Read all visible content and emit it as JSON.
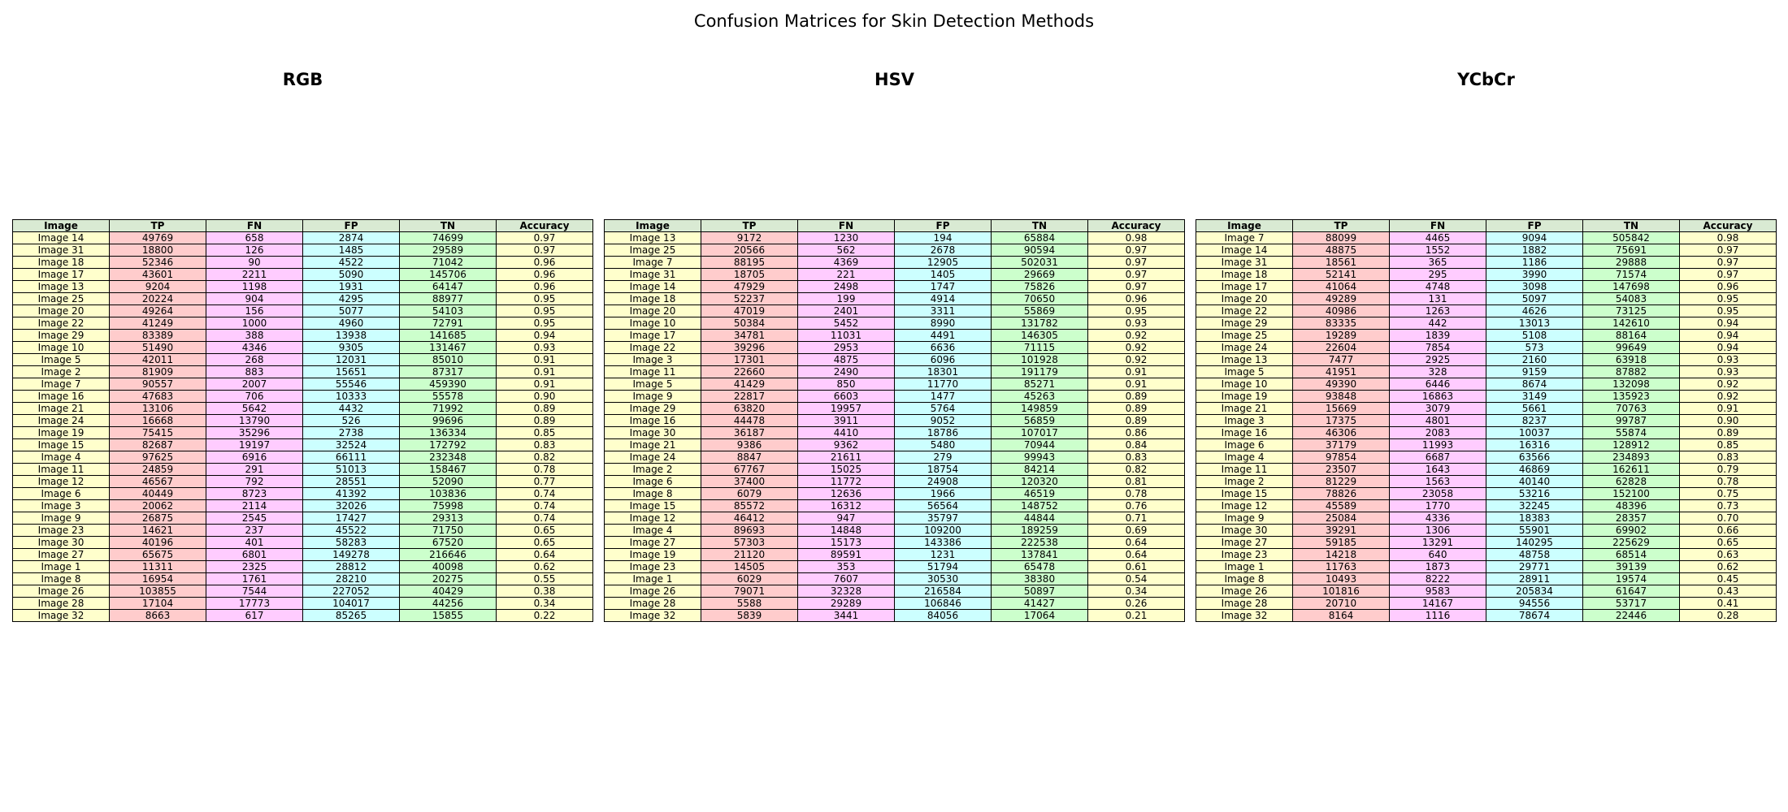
{
  "title": "Confusion Matrices for Skin Detection Methods",
  "colors": {
    "header": "#d9ead3",
    "image": "#ffffcc",
    "tp": "#ffcccc",
    "fn": "#ffccff",
    "fp": "#ccffff",
    "tn": "#ccffcc",
    "accuracy": "#ffffcc"
  },
  "chart_data": [
    {
      "type": "table",
      "title": "RGB",
      "columns": [
        "Image",
        "TP",
        "FN",
        "FP",
        "TN",
        "Accuracy"
      ],
      "rows": [
        [
          "Image 14",
          "49769",
          "658",
          "2874",
          "74699",
          "0.97"
        ],
        [
          "Image 31",
          "18800",
          "126",
          "1485",
          "29589",
          "0.97"
        ],
        [
          "Image 18",
          "52346",
          "90",
          "4522",
          "71042",
          "0.96"
        ],
        [
          "Image 17",
          "43601",
          "2211",
          "5090",
          "145706",
          "0.96"
        ],
        [
          "Image 13",
          "9204",
          "1198",
          "1931",
          "64147",
          "0.96"
        ],
        [
          "Image 25",
          "20224",
          "904",
          "4295",
          "88977",
          "0.95"
        ],
        [
          "Image 20",
          "49264",
          "156",
          "5077",
          "54103",
          "0.95"
        ],
        [
          "Image 22",
          "41249",
          "1000",
          "4960",
          "72791",
          "0.95"
        ],
        [
          "Image 29",
          "83389",
          "388",
          "13938",
          "141685",
          "0.94"
        ],
        [
          "Image 10",
          "51490",
          "4346",
          "9305",
          "131467",
          "0.93"
        ],
        [
          "Image 5",
          "42011",
          "268",
          "12031",
          "85010",
          "0.91"
        ],
        [
          "Image 2",
          "81909",
          "883",
          "15651",
          "87317",
          "0.91"
        ],
        [
          "Image 7",
          "90557",
          "2007",
          "55546",
          "459390",
          "0.91"
        ],
        [
          "Image 16",
          "47683",
          "706",
          "10333",
          "55578",
          "0.90"
        ],
        [
          "Image 21",
          "13106",
          "5642",
          "4432",
          "71992",
          "0.89"
        ],
        [
          "Image 24",
          "16668",
          "13790",
          "526",
          "99696",
          "0.89"
        ],
        [
          "Image 19",
          "75415",
          "35296",
          "2738",
          "136334",
          "0.85"
        ],
        [
          "Image 15",
          "82687",
          "19197",
          "32524",
          "172792",
          "0.83"
        ],
        [
          "Image 4",
          "97625",
          "6916",
          "66111",
          "232348",
          "0.82"
        ],
        [
          "Image 11",
          "24859",
          "291",
          "51013",
          "158467",
          "0.78"
        ],
        [
          "Image 12",
          "46567",
          "792",
          "28551",
          "52090",
          "0.77"
        ],
        [
          "Image 6",
          "40449",
          "8723",
          "41392",
          "103836",
          "0.74"
        ],
        [
          "Image 3",
          "20062",
          "2114",
          "32026",
          "75998",
          "0.74"
        ],
        [
          "Image 9",
          "26875",
          "2545",
          "17427",
          "29313",
          "0.74"
        ],
        [
          "Image 23",
          "14621",
          "237",
          "45522",
          "71750",
          "0.65"
        ],
        [
          "Image 30",
          "40196",
          "401",
          "58283",
          "67520",
          "0.65"
        ],
        [
          "Image 27",
          "65675",
          "6801",
          "149278",
          "216646",
          "0.64"
        ],
        [
          "Image 1",
          "11311",
          "2325",
          "28812",
          "40098",
          "0.62"
        ],
        [
          "Image 8",
          "16954",
          "1761",
          "28210",
          "20275",
          "0.55"
        ],
        [
          "Image 26",
          "103855",
          "7544",
          "227052",
          "40429",
          "0.38"
        ],
        [
          "Image 28",
          "17104",
          "17773",
          "104017",
          "44256",
          "0.34"
        ],
        [
          "Image 32",
          "8663",
          "617",
          "85265",
          "15855",
          "0.22"
        ]
      ]
    },
    {
      "type": "table",
      "title": "HSV",
      "columns": [
        "Image",
        "TP",
        "FN",
        "FP",
        "TN",
        "Accuracy"
      ],
      "rows": [
        [
          "Image 13",
          "9172",
          "1230",
          "194",
          "65884",
          "0.98"
        ],
        [
          "Image 25",
          "20566",
          "562",
          "2678",
          "90594",
          "0.97"
        ],
        [
          "Image 7",
          "88195",
          "4369",
          "12905",
          "502031",
          "0.97"
        ],
        [
          "Image 31",
          "18705",
          "221",
          "1405",
          "29669",
          "0.97"
        ],
        [
          "Image 14",
          "47929",
          "2498",
          "1747",
          "75826",
          "0.97"
        ],
        [
          "Image 18",
          "52237",
          "199",
          "4914",
          "70650",
          "0.96"
        ],
        [
          "Image 20",
          "47019",
          "2401",
          "3311",
          "55869",
          "0.95"
        ],
        [
          "Image 10",
          "50384",
          "5452",
          "8990",
          "131782",
          "0.93"
        ],
        [
          "Image 17",
          "34781",
          "11031",
          "4491",
          "146305",
          "0.92"
        ],
        [
          "Image 22",
          "39296",
          "2953",
          "6636",
          "71115",
          "0.92"
        ],
        [
          "Image 3",
          "17301",
          "4875",
          "6096",
          "101928",
          "0.92"
        ],
        [
          "Image 11",
          "22660",
          "2490",
          "18301",
          "191179",
          "0.91"
        ],
        [
          "Image 5",
          "41429",
          "850",
          "11770",
          "85271",
          "0.91"
        ],
        [
          "Image 9",
          "22817",
          "6603",
          "1477",
          "45263",
          "0.89"
        ],
        [
          "Image 29",
          "63820",
          "19957",
          "5764",
          "149859",
          "0.89"
        ],
        [
          "Image 16",
          "44478",
          "3911",
          "9052",
          "56859",
          "0.89"
        ],
        [
          "Image 30",
          "36187",
          "4410",
          "18786",
          "107017",
          "0.86"
        ],
        [
          "Image 21",
          "9386",
          "9362",
          "5480",
          "70944",
          "0.84"
        ],
        [
          "Image 24",
          "8847",
          "21611",
          "279",
          "99943",
          "0.83"
        ],
        [
          "Image 2",
          "67767",
          "15025",
          "18754",
          "84214",
          "0.82"
        ],
        [
          "Image 6",
          "37400",
          "11772",
          "24908",
          "120320",
          "0.81"
        ],
        [
          "Image 8",
          "6079",
          "12636",
          "1966",
          "46519",
          "0.78"
        ],
        [
          "Image 15",
          "85572",
          "16312",
          "56564",
          "148752",
          "0.76"
        ],
        [
          "Image 12",
          "46412",
          "947",
          "35797",
          "44844",
          "0.71"
        ],
        [
          "Image 4",
          "89693",
          "14848",
          "109200",
          "189259",
          "0.69"
        ],
        [
          "Image 27",
          "57303",
          "15173",
          "143386",
          "222538",
          "0.64"
        ],
        [
          "Image 19",
          "21120",
          "89591",
          "1231",
          "137841",
          "0.64"
        ],
        [
          "Image 23",
          "14505",
          "353",
          "51794",
          "65478",
          "0.61"
        ],
        [
          "Image 1",
          "6029",
          "7607",
          "30530",
          "38380",
          "0.54"
        ],
        [
          "Image 26",
          "79071",
          "32328",
          "216584",
          "50897",
          "0.34"
        ],
        [
          "Image 28",
          "5588",
          "29289",
          "106846",
          "41427",
          "0.26"
        ],
        [
          "Image 32",
          "5839",
          "3441",
          "84056",
          "17064",
          "0.21"
        ]
      ]
    },
    {
      "type": "table",
      "title": "YCbCr",
      "columns": [
        "Image",
        "TP",
        "FN",
        "FP",
        "TN",
        "Accuracy"
      ],
      "rows": [
        [
          "Image 7",
          "88099",
          "4465",
          "9094",
          "505842",
          "0.98"
        ],
        [
          "Image 14",
          "48875",
          "1552",
          "1882",
          "75691",
          "0.97"
        ],
        [
          "Image 31",
          "18561",
          "365",
          "1186",
          "29888",
          "0.97"
        ],
        [
          "Image 18",
          "52141",
          "295",
          "3990",
          "71574",
          "0.97"
        ],
        [
          "Image 17",
          "41064",
          "4748",
          "3098",
          "147698",
          "0.96"
        ],
        [
          "Image 20",
          "49289",
          "131",
          "5097",
          "54083",
          "0.95"
        ],
        [
          "Image 22",
          "40986",
          "1263",
          "4626",
          "73125",
          "0.95"
        ],
        [
          "Image 29",
          "83335",
          "442",
          "13013",
          "142610",
          "0.94"
        ],
        [
          "Image 25",
          "19289",
          "1839",
          "5108",
          "88164",
          "0.94"
        ],
        [
          "Image 24",
          "22604",
          "7854",
          "573",
          "99649",
          "0.94"
        ],
        [
          "Image 13",
          "7477",
          "2925",
          "2160",
          "63918",
          "0.93"
        ],
        [
          "Image 5",
          "41951",
          "328",
          "9159",
          "87882",
          "0.93"
        ],
        [
          "Image 10",
          "49390",
          "6446",
          "8674",
          "132098",
          "0.92"
        ],
        [
          "Image 19",
          "93848",
          "16863",
          "3149",
          "135923",
          "0.92"
        ],
        [
          "Image 21",
          "15669",
          "3079",
          "5661",
          "70763",
          "0.91"
        ],
        [
          "Image 3",
          "17375",
          "4801",
          "8237",
          "99787",
          "0.90"
        ],
        [
          "Image 16",
          "46306",
          "2083",
          "10037",
          "55874",
          "0.89"
        ],
        [
          "Image 6",
          "37179",
          "11993",
          "16316",
          "128912",
          "0.85"
        ],
        [
          "Image 4",
          "97854",
          "6687",
          "63566",
          "234893",
          "0.83"
        ],
        [
          "Image 11",
          "23507",
          "1643",
          "46869",
          "162611",
          "0.79"
        ],
        [
          "Image 2",
          "81229",
          "1563",
          "40140",
          "62828",
          "0.78"
        ],
        [
          "Image 15",
          "78826",
          "23058",
          "53216",
          "152100",
          "0.75"
        ],
        [
          "Image 12",
          "45589",
          "1770",
          "32245",
          "48396",
          "0.73"
        ],
        [
          "Image 9",
          "25084",
          "4336",
          "18383",
          "28357",
          "0.70"
        ],
        [
          "Image 30",
          "39291",
          "1306",
          "55901",
          "69902",
          "0.66"
        ],
        [
          "Image 27",
          "59185",
          "13291",
          "140295",
          "225629",
          "0.65"
        ],
        [
          "Image 23",
          "14218",
          "640",
          "48758",
          "68514",
          "0.63"
        ],
        [
          "Image 1",
          "11763",
          "1873",
          "29771",
          "39139",
          "0.62"
        ],
        [
          "Image 8",
          "10493",
          "8222",
          "28911",
          "19574",
          "0.45"
        ],
        [
          "Image 26",
          "101816",
          "9583",
          "205834",
          "61647",
          "0.43"
        ],
        [
          "Image 28",
          "20710",
          "14167",
          "94556",
          "53717",
          "0.41"
        ],
        [
          "Image 32",
          "8164",
          "1116",
          "78674",
          "22446",
          "0.28"
        ]
      ]
    }
  ]
}
